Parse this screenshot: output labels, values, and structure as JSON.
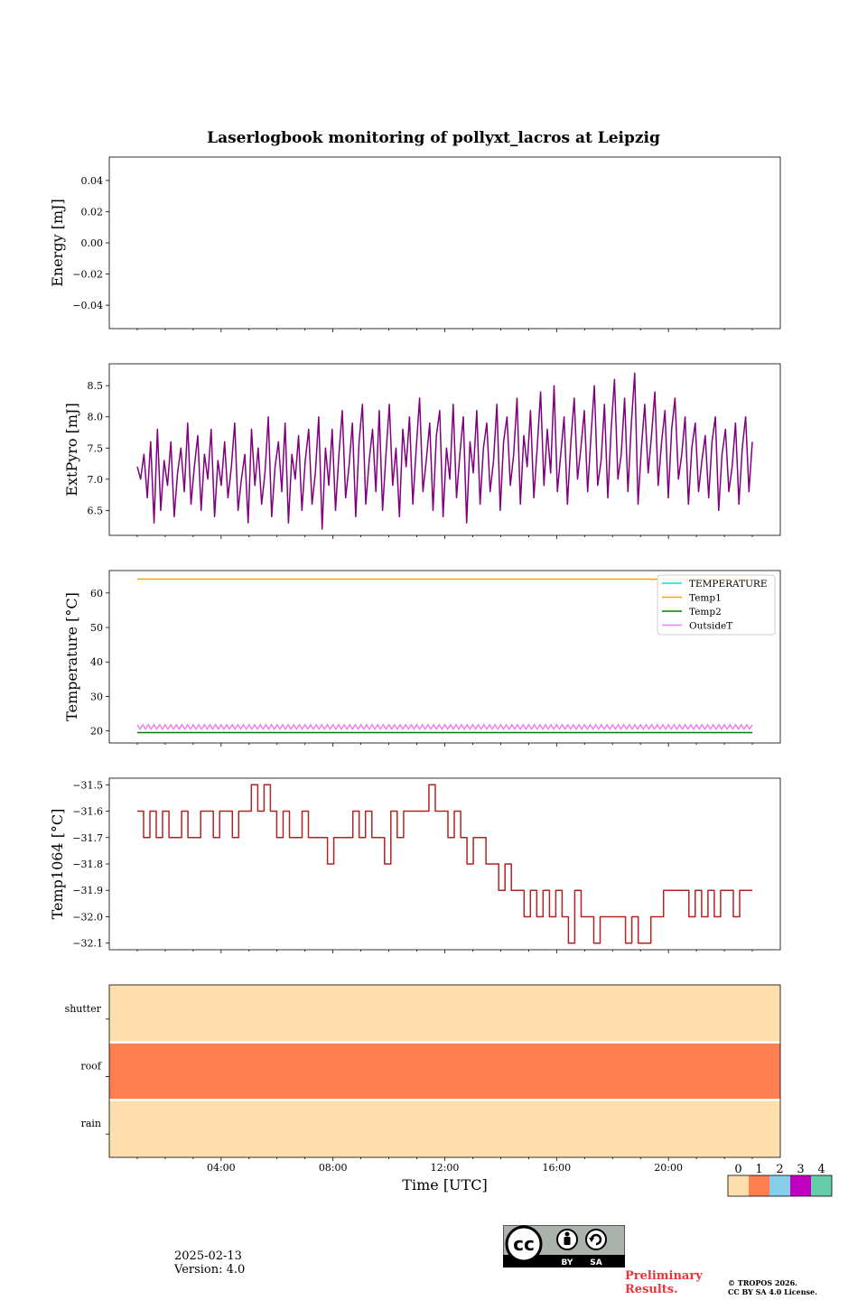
{
  "title": "Laserlogbook monitoring of pollyxt_lacros at Leipzig",
  "chart_data": [
    {
      "type": "line",
      "id": "energy",
      "title": "",
      "xlabel": "",
      "ylabel": "Energy [mJ]",
      "ylim": [
        -0.055,
        0.055
      ],
      "yticks": [
        "0.04",
        "0.02",
        "0.00",
        "−0.02",
        "−0.04"
      ],
      "ytick_values": [
        0.04,
        0.02,
        0.0,
        -0.02,
        -0.04
      ],
      "series": []
    },
    {
      "type": "line",
      "id": "extpyro",
      "ylabel": "ExtPyro [mJ]",
      "ylim": [
        6.1,
        8.85
      ],
      "yticks": [
        "8.5",
        "8.0",
        "7.5",
        "7.0",
        "6.5"
      ],
      "ytick_values": [
        8.5,
        8.0,
        7.5,
        7.0,
        6.5
      ],
      "series": [
        {
          "name": "ExtPyro",
          "color": "#800080",
          "x_start_hours": 1.0,
          "x_end_hours": 23.0,
          "values": [
            7.2,
            7.0,
            7.4,
            6.7,
            7.6,
            6.3,
            7.8,
            6.5,
            7.3,
            6.9,
            7.6,
            6.4,
            7.1,
            7.5,
            6.8,
            7.9,
            6.6,
            7.2,
            7.7,
            6.5,
            7.4,
            7.0,
            7.8,
            6.4,
            7.3,
            6.9,
            7.6,
            6.7,
            7.2,
            7.9,
            6.5,
            7.0,
            7.4,
            6.3,
            7.8,
            6.9,
            7.5,
            6.6,
            7.1,
            8.0,
            6.4,
            7.2,
            7.6,
            6.8,
            7.9,
            6.3,
            7.4,
            7.0,
            7.7,
            6.5,
            7.3,
            7.8,
            6.6,
            7.1,
            8.0,
            6.2,
            7.5,
            6.9,
            7.8,
            6.5,
            7.4,
            8.1,
            6.7,
            7.2,
            7.9,
            6.4,
            7.6,
            8.2,
            6.6,
            7.3,
            7.8,
            6.8,
            8.1,
            6.5,
            7.4,
            8.2,
            6.9,
            7.5,
            6.4,
            7.8,
            7.2,
            8.0,
            6.6,
            7.5,
            8.3,
            6.8,
            7.3,
            7.9,
            6.5,
            7.7,
            8.1,
            6.4,
            7.5,
            7.0,
            8.2,
            6.7,
            7.4,
            8.0,
            6.3,
            7.6,
            7.1,
            8.1,
            6.6,
            7.5,
            7.9,
            6.8,
            7.3,
            8.2,
            6.5,
            7.6,
            8.0,
            6.9,
            7.4,
            8.3,
            6.6,
            7.7,
            7.2,
            8.1,
            6.7,
            7.5,
            8.4,
            6.9,
            7.8,
            7.1,
            8.5,
            6.8,
            7.4,
            8.0,
            6.6,
            7.6,
            8.3,
            7.0,
            7.5,
            8.1,
            6.8,
            7.7,
            8.5,
            6.9,
            7.3,
            8.2,
            6.7,
            7.8,
            8.6,
            7.0,
            7.4,
            8.3,
            6.8,
            7.9,
            8.7,
            6.6,
            7.5,
            8.2,
            7.1,
            7.7,
            8.4,
            6.9,
            7.6,
            8.1,
            6.7,
            7.8,
            8.3,
            7.0,
            7.4,
            8.0,
            6.6,
            7.5,
            7.9,
            6.8,
            7.3,
            7.7,
            6.7,
            7.6,
            8.0,
            6.5,
            7.4,
            7.8,
            6.8,
            7.2,
            7.9,
            6.6,
            7.5,
            8.0,
            6.8,
            7.6
          ]
        }
      ]
    },
    {
      "type": "line",
      "id": "temperature",
      "ylabel": "Temperature [°C]",
      "ylim": [
        16.5,
        66.5
      ],
      "yticks": [
        "60",
        "50",
        "40",
        "30",
        "20"
      ],
      "ytick_values": [
        60,
        50,
        40,
        30,
        20
      ],
      "legend_position": "top-right",
      "series": [
        {
          "name": "TEMPERATURE",
          "color": "#00e5e5",
          "value": null
        },
        {
          "name": "Temp1",
          "color": "#ffa500",
          "value": 64.0
        },
        {
          "name": "Temp2",
          "color": "#008000",
          "value": 19.5
        },
        {
          "name": "OutsideT",
          "color": "#ee82ee",
          "value": 21.0,
          "amplitude": 0.8
        }
      ]
    },
    {
      "type": "line",
      "id": "temp1064",
      "ylabel": "Temp1064 [°C]",
      "ylim": [
        -32.125,
        -31.475
      ],
      "yticks": [
        "−31.5",
        "−31.6",
        "−31.7",
        "−31.8",
        "−31.9",
        "−32.0",
        "−32.1"
      ],
      "ytick_values": [
        -31.5,
        -31.6,
        -31.7,
        -31.8,
        -31.9,
        -32.0,
        -32.1
      ],
      "series": [
        {
          "name": "Temp1064",
          "color": "#b22222",
          "x_start_hours": 1.0,
          "x_end_hours": 23.0,
          "values": [
            -31.6,
            -31.7,
            -31.6,
            -31.7,
            -31.6,
            -31.7,
            -31.7,
            -31.6,
            -31.7,
            -31.7,
            -31.6,
            -31.6,
            -31.7,
            -31.6,
            -31.6,
            -31.7,
            -31.6,
            -31.6,
            -31.5,
            -31.6,
            -31.5,
            -31.6,
            -31.7,
            -31.6,
            -31.7,
            -31.7,
            -31.6,
            -31.7,
            -31.7,
            -31.7,
            -31.8,
            -31.7,
            -31.7,
            -31.7,
            -31.6,
            -31.7,
            -31.6,
            -31.7,
            -31.7,
            -31.8,
            -31.6,
            -31.7,
            -31.6,
            -31.6,
            -31.6,
            -31.6,
            -31.5,
            -31.6,
            -31.6,
            -31.7,
            -31.6,
            -31.7,
            -31.8,
            -31.7,
            -31.7,
            -31.8,
            -31.8,
            -31.9,
            -31.8,
            -31.9,
            -31.9,
            -32.0,
            -31.9,
            -32.0,
            -31.9,
            -32.0,
            -31.9,
            -32.0,
            -32.1,
            -31.9,
            -32.0,
            -32.0,
            -32.1,
            -32.0,
            -32.0,
            -32.0,
            -32.0,
            -32.1,
            -32.0,
            -32.1,
            -32.1,
            -32.0,
            -32.0,
            -31.9,
            -31.9,
            -31.9,
            -31.9,
            -32.0,
            -31.9,
            -32.0,
            -31.9,
            -32.0,
            -31.9,
            -31.9,
            -32.0,
            -31.9,
            -31.9,
            -31.9
          ]
        }
      ]
    },
    {
      "type": "heatmap",
      "id": "status",
      "rows": [
        "shutter",
        "roof",
        "rain"
      ],
      "row_values": [
        0,
        1,
        0
      ],
      "xlabel": "Time [UTC]",
      "xlim_hours": [
        0,
        24
      ],
      "xticks": [
        "04:00",
        "08:00",
        "12:00",
        "16:00",
        "20:00"
      ],
      "xtick_hours": [
        4,
        8,
        12,
        16,
        20
      ],
      "colorbar": {
        "labels": [
          "0",
          "1",
          "2",
          "3",
          "4"
        ],
        "colors": [
          "#ffdead",
          "#ff7f50",
          "#87ceeb",
          "#c000c0",
          "#66cdaa"
        ]
      }
    }
  ],
  "footer": {
    "date": "2025-02-13",
    "version": "Version: 4.0",
    "preliminary": "Preliminary\nResults.",
    "preliminary_line1": "Preliminary",
    "preliminary_line2": "Results.",
    "copyright_line1": "© TROPOS 2026.",
    "copyright_line2": "CC BY SA 4.0 License.",
    "cc_badge": {
      "by": "BY",
      "sa": "SA",
      "cc": "cc"
    }
  }
}
